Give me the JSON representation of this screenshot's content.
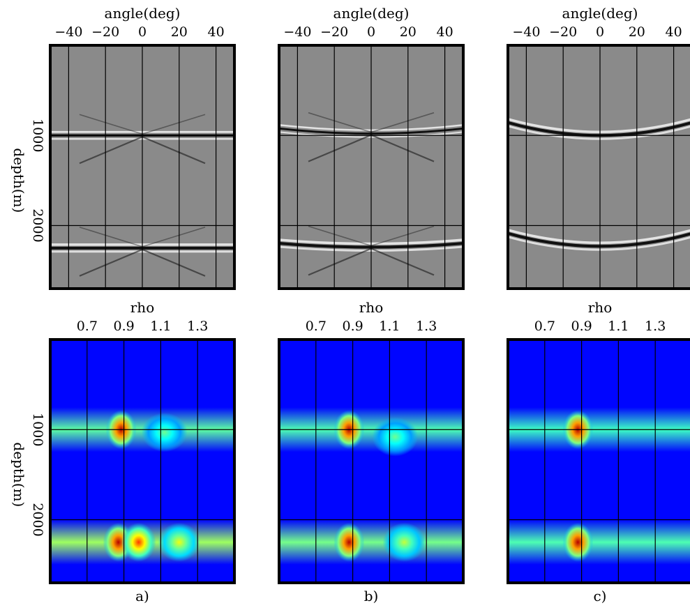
{
  "chart_data": [
    {
      "type": "heatmap",
      "panel": "a",
      "row": "angle",
      "xlabel": "angle(deg)",
      "ylabel": "depth(m)",
      "xticks": [
        "−40",
        "−20",
        "0",
        "20",
        "40"
      ],
      "xtick_values": [
        -40,
        -20,
        0,
        20,
        40
      ],
      "yticks": [
        "1000",
        "2000"
      ],
      "ytick_values": [
        1000,
        2000
      ],
      "xlim": [
        -50,
        50
      ],
      "ylim": [
        0,
        2700
      ],
      "colormap": "gray",
      "events": [
        {
          "depth": 1000,
          "curvature": 0,
          "amplitude": 0.8,
          "crossing_tails": true
        },
        {
          "depth": 2250,
          "curvature": 0,
          "amplitude": 1.0,
          "crossing_tails": true
        }
      ]
    },
    {
      "type": "heatmap",
      "panel": "b",
      "row": "angle",
      "xlabel": "angle(deg)",
      "ylabel": "",
      "xticks": [
        "−40",
        "−20",
        "0",
        "20",
        "40"
      ],
      "xtick_values": [
        -40,
        -20,
        0,
        20,
        40
      ],
      "yticks": [],
      "xlim": [
        -50,
        50
      ],
      "ylim": [
        0,
        2700
      ],
      "colormap": "gray",
      "events": [
        {
          "depth": 980,
          "curvature": 0.4,
          "amplitude": 0.7,
          "crossing_tails": true
        },
        {
          "depth": 2240,
          "curvature": 0.3,
          "amplitude": 1.0,
          "crossing_tails": true
        }
      ]
    },
    {
      "type": "heatmap",
      "panel": "c",
      "row": "angle",
      "xlabel": "angle(deg)",
      "ylabel": "",
      "xticks": [
        "−40",
        "−20",
        "0",
        "20",
        "40"
      ],
      "xtick_values": [
        -40,
        -20,
        0,
        20,
        40
      ],
      "yticks": [],
      "xlim": [
        -50,
        50
      ],
      "ylim": [
        0,
        2700
      ],
      "colormap": "gray",
      "events": [
        {
          "depth": 1000,
          "curvature": 1.0,
          "amplitude": 1.0,
          "crossing_tails": false
        },
        {
          "depth": 2230,
          "curvature": 1.0,
          "amplitude": 1.0,
          "crossing_tails": false
        }
      ]
    },
    {
      "type": "heatmap",
      "panel": "a",
      "row": "rho",
      "xlabel": "rho",
      "ylabel": "depth(m)",
      "xticks": [
        "0.7",
        "0.9",
        "1.1",
        "1.3"
      ],
      "xtick_values": [
        0.7,
        0.9,
        1.1,
        1.3
      ],
      "yticks": [
        "1000",
        "2000"
      ],
      "ytick_values": [
        1000,
        2000
      ],
      "xlim": [
        0.5,
        1.5
      ],
      "ylim": [
        0,
        2700
      ],
      "colormap": "jet",
      "bands": [
        {
          "depth": 1000,
          "strength": 0.42
        },
        {
          "depth": 2250,
          "strength": 0.5
        }
      ],
      "peaks": [
        {
          "rho": 0.885,
          "depth": 1000,
          "value": 1.0
        },
        {
          "rho": 0.87,
          "depth": 2250,
          "value": 1.0
        },
        {
          "rho": 0.98,
          "depth": 2250,
          "value": 0.85
        },
        {
          "rho": 1.2,
          "depth": 2250,
          "value": 0.6
        },
        {
          "rho": 1.12,
          "depth": 1030,
          "value": 0.45
        }
      ]
    },
    {
      "type": "heatmap",
      "panel": "b",
      "row": "rho",
      "xlabel": "rho",
      "ylabel": "",
      "xticks": [
        "0.7",
        "0.9",
        "1.1",
        "1.3"
      ],
      "xtick_values": [
        0.7,
        0.9,
        1.1,
        1.3
      ],
      "yticks": [],
      "xlim": [
        0.5,
        1.5
      ],
      "ylim": [
        0,
        2700
      ],
      "colormap": "jet",
      "bands": [
        {
          "depth": 1000,
          "strength": 0.4
        },
        {
          "depth": 2250,
          "strength": 0.45
        }
      ],
      "peaks": [
        {
          "rho": 0.88,
          "depth": 1000,
          "value": 1.0
        },
        {
          "rho": 0.88,
          "depth": 2250,
          "value": 1.0
        },
        {
          "rho": 1.13,
          "depth": 1080,
          "value": 0.45
        },
        {
          "rho": 1.18,
          "depth": 2250,
          "value": 0.55
        }
      ]
    },
    {
      "type": "heatmap",
      "panel": "c",
      "row": "rho",
      "xlabel": "rho",
      "ylabel": "",
      "xticks": [
        "0.7",
        "0.9",
        "1.1",
        "1.3"
      ],
      "xtick_values": [
        0.7,
        0.9,
        1.1,
        1.3
      ],
      "yticks": [],
      "xlim": [
        0.5,
        1.5
      ],
      "ylim": [
        0,
        2700
      ],
      "colormap": "jet",
      "bands": [
        {
          "depth": 1000,
          "strength": 0.38
        },
        {
          "depth": 2250,
          "strength": 0.4
        }
      ],
      "peaks": [
        {
          "rho": 0.88,
          "depth": 1000,
          "value": 1.0
        },
        {
          "rho": 0.88,
          "depth": 2250,
          "value": 1.0
        }
      ]
    }
  ],
  "captions": [
    "a)",
    "b)",
    "c)"
  ]
}
